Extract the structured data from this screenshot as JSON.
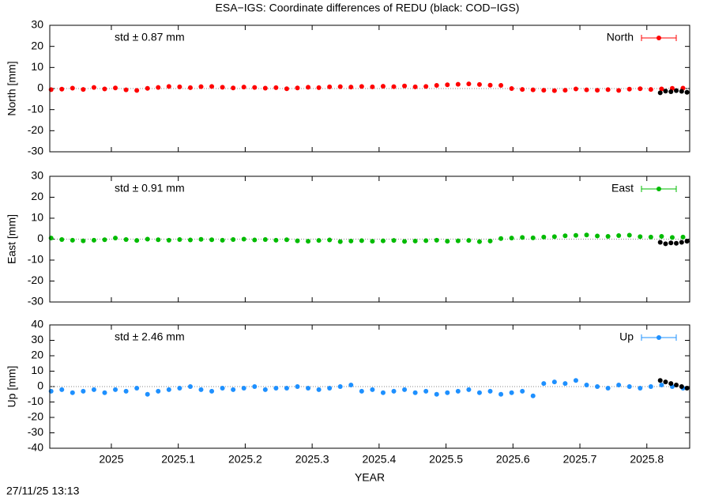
{
  "title": "ESA−IGS: Coordinate differences of REDU (black: COD−IGS)",
  "footer": "27/11/25 13:13",
  "chart_data": [
    {
      "type": "scatter",
      "ylabel": "North [mm]",
      "annotation": "std ± 0.87 mm",
      "annotation_color": "#ff0000",
      "xlim": [
        2024.908,
        2025.864
      ],
      "xticks": [
        2025,
        2025.1,
        2025.2,
        2025.3,
        2025.4,
        2025.5,
        2025.6,
        2025.7,
        2025.8
      ],
      "ylim": [
        -30,
        30
      ],
      "yticks": [
        -30,
        -20,
        -10,
        0,
        10,
        20,
        30
      ],
      "zero_line": true,
      "legend": "upper right",
      "series": [
        {
          "name": "North",
          "color": "#ff0000",
          "x": [
            2024.91,
            2024.926,
            2024.942,
            2024.958,
            2024.974,
            2024.99,
            2025.006,
            2025.022,
            2025.038,
            2025.054,
            2025.07,
            2025.086,
            2025.102,
            2025.118,
            2025.134,
            2025.15,
            2025.166,
            2025.182,
            2025.198,
            2025.214,
            2025.23,
            2025.246,
            2025.262,
            2025.278,
            2025.294,
            2025.31,
            2025.326,
            2025.342,
            2025.358,
            2025.374,
            2025.39,
            2025.406,
            2025.422,
            2025.438,
            2025.454,
            2025.47,
            2025.486,
            2025.502,
            2025.518,
            2025.534,
            2025.55,
            2025.566,
            2025.582,
            2025.598,
            2025.614,
            2025.63,
            2025.646,
            2025.662,
            2025.678,
            2025.694,
            2025.71,
            2025.726,
            2025.742,
            2025.758,
            2025.774,
            2025.79,
            2025.806,
            2025.822,
            2025.838,
            2025.854
          ],
          "values": [
            -0.5,
            -0.3,
            0.2,
            -0.4,
            0.5,
            -0.2,
            0.3,
            -0.6,
            -0.9,
            0.1,
            0.5,
            1.0,
            0.8,
            0.4,
            0.9,
            1.0,
            0.6,
            0.3,
            0.7,
            0.5,
            0.2,
            0.4,
            -0.1,
            0.3,
            0.6,
            0.4,
            0.8,
            0.9,
            0.7,
            1.0,
            0.8,
            1.1,
            0.9,
            1.2,
            0.8,
            1.0,
            1.5,
            1.8,
            2.0,
            2.2,
            1.9,
            1.6,
            1.5,
            0.0,
            -0.4,
            -0.6,
            -0.8,
            -1.0,
            -0.8,
            -0.2,
            -0.6,
            -0.8,
            -0.5,
            -0.9,
            -0.3,
            -0.1,
            -0.4,
            -0.2,
            0.1,
            0.2
          ]
        },
        {
          "color": "#000000",
          "x": [
            2025.82,
            2025.828,
            2025.836,
            2025.844,
            2025.852,
            2025.86
          ],
          "values": [
            -2.0,
            -1.2,
            -1.5,
            -1.0,
            -1.3,
            -1.8
          ]
        }
      ]
    },
    {
      "type": "scatter",
      "ylabel": "East [mm]",
      "annotation": "std ± 0.91 mm",
      "annotation_color": "#00bb00",
      "xlim": [
        2024.908,
        2025.864
      ],
      "xticks": [
        2025,
        2025.1,
        2025.2,
        2025.3,
        2025.4,
        2025.5,
        2025.6,
        2025.7,
        2025.8
      ],
      "ylim": [
        -30,
        30
      ],
      "yticks": [
        -30,
        -20,
        -10,
        0,
        10,
        20,
        30
      ],
      "zero_line": true,
      "legend": "upper right",
      "series": [
        {
          "name": "East",
          "color": "#00bb00",
          "x": [
            2024.91,
            2024.926,
            2024.942,
            2024.958,
            2024.974,
            2024.99,
            2025.006,
            2025.022,
            2025.038,
            2025.054,
            2025.07,
            2025.086,
            2025.102,
            2025.118,
            2025.134,
            2025.15,
            2025.166,
            2025.182,
            2025.198,
            2025.214,
            2025.23,
            2025.246,
            2025.262,
            2025.278,
            2025.294,
            2025.31,
            2025.326,
            2025.342,
            2025.358,
            2025.374,
            2025.39,
            2025.406,
            2025.422,
            2025.438,
            2025.454,
            2025.47,
            2025.486,
            2025.502,
            2025.518,
            2025.534,
            2025.55,
            2025.566,
            2025.582,
            2025.598,
            2025.614,
            2025.63,
            2025.646,
            2025.662,
            2025.678,
            2025.694,
            2025.71,
            2025.726,
            2025.742,
            2025.758,
            2025.774,
            2025.79,
            2025.806,
            2025.822,
            2025.838,
            2025.854
          ],
          "values": [
            0.5,
            -0.2,
            -0.5,
            -0.8,
            -0.5,
            -0.3,
            0.5,
            -0.2,
            -0.6,
            0.0,
            -0.3,
            -0.5,
            -0.2,
            -0.4,
            -0.1,
            -0.3,
            -0.5,
            -0.2,
            0.0,
            -0.4,
            -0.2,
            -0.5,
            -0.3,
            -0.8,
            -1.0,
            -0.6,
            -0.4,
            -1.2,
            -0.9,
            -0.7,
            -1.0,
            -0.8,
            -0.6,
            -1.1,
            -0.9,
            -0.7,
            -0.5,
            -1.0,
            -0.8,
            -0.6,
            -1.2,
            -0.9,
            0.3,
            0.5,
            0.8,
            0.6,
            1.0,
            1.2,
            1.6,
            1.8,
            2.0,
            1.5,
            1.3,
            1.7,
            1.9,
            1.2,
            1.0,
            1.3,
            0.8,
            1.0
          ]
        },
        {
          "color": "#000000",
          "x": [
            2025.82,
            2025.828,
            2025.836,
            2025.844,
            2025.852,
            2025.86
          ],
          "values": [
            -1.5,
            -2.2,
            -1.8,
            -2.0,
            -1.5,
            -1.0
          ]
        }
      ]
    },
    {
      "type": "scatter",
      "ylabel": "Up [mm]",
      "annotation": "std ± 2.46 mm",
      "annotation_color": "#1e90ff",
      "xlabel": "YEAR",
      "xlim": [
        2024.908,
        2025.864
      ],
      "xticks": [
        2025,
        2025.1,
        2025.2,
        2025.3,
        2025.4,
        2025.5,
        2025.6,
        2025.7,
        2025.8
      ],
      "ylim": [
        -40,
        40
      ],
      "yticks": [
        -40,
        -30,
        -20,
        -10,
        0,
        10,
        20,
        30,
        40
      ],
      "zero_line": true,
      "legend": "upper right",
      "series": [
        {
          "name": "Up",
          "color": "#1e90ff",
          "x": [
            2024.91,
            2024.926,
            2024.942,
            2024.958,
            2024.974,
            2024.99,
            2025.006,
            2025.022,
            2025.038,
            2025.054,
            2025.07,
            2025.086,
            2025.102,
            2025.118,
            2025.134,
            2025.15,
            2025.166,
            2025.182,
            2025.198,
            2025.214,
            2025.23,
            2025.246,
            2025.262,
            2025.278,
            2025.294,
            2025.31,
            2025.326,
            2025.342,
            2025.358,
            2025.374,
            2025.39,
            2025.406,
            2025.422,
            2025.438,
            2025.454,
            2025.47,
            2025.486,
            2025.502,
            2025.518,
            2025.534,
            2025.55,
            2025.566,
            2025.582,
            2025.598,
            2025.614,
            2025.63,
            2025.646,
            2025.662,
            2025.678,
            2025.694,
            2025.71,
            2025.726,
            2025.742,
            2025.758,
            2025.774,
            2025.79,
            2025.806,
            2025.822,
            2025.838,
            2025.854
          ],
          "values": [
            -3,
            -2,
            -4,
            -3,
            -2,
            -4,
            -2,
            -3,
            -1,
            -5,
            -3,
            -2,
            -1,
            0,
            -2,
            -3,
            -1,
            -2,
            -1,
            0,
            -2,
            -1,
            -1,
            0,
            -1,
            -2,
            -1,
            0,
            1,
            -3,
            -2,
            -4,
            -3,
            -2,
            -4,
            -3,
            -5,
            -4,
            -3,
            -2,
            -4,
            -3,
            -5,
            -4,
            -3,
            -6,
            2,
            3,
            2,
            4,
            1,
            0,
            -1,
            1,
            0,
            -1,
            0,
            1,
            0,
            -1
          ]
        },
        {
          "color": "#000000",
          "x": [
            2025.82,
            2025.828,
            2025.836,
            2025.844,
            2025.852,
            2025.86
          ],
          "values": [
            4,
            3,
            2,
            1,
            0,
            -1
          ]
        }
      ]
    }
  ]
}
